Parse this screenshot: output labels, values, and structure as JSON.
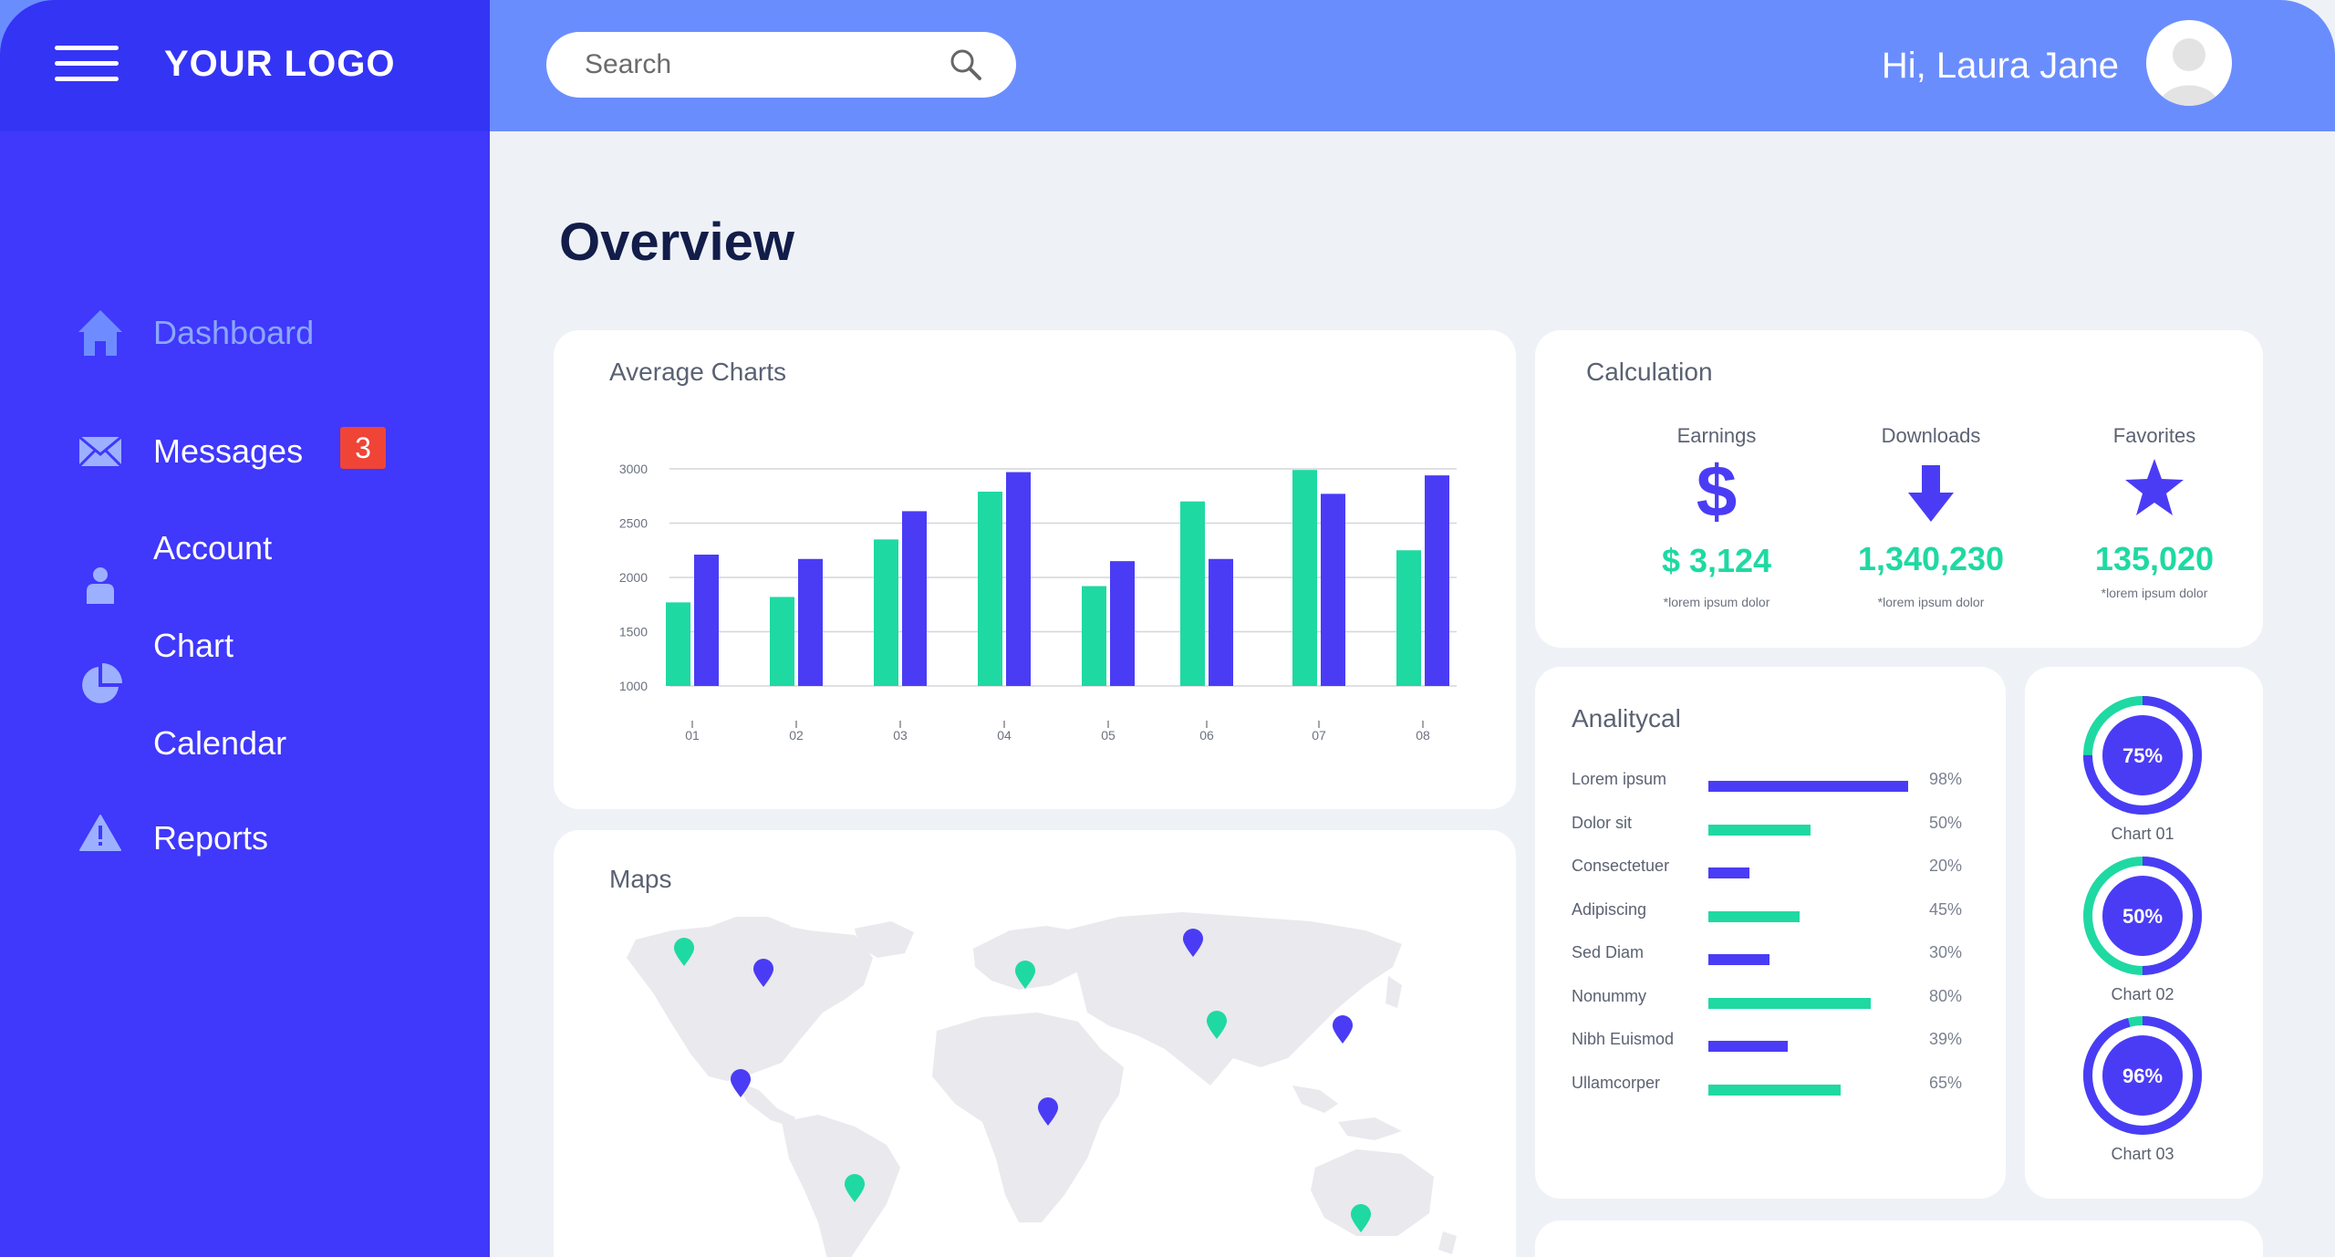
{
  "header": {
    "logo": "YOUR LOGO",
    "search_placeholder": "Search",
    "greeting": "Hi, Laura Jane"
  },
  "sidebar": {
    "items": [
      {
        "label": "Dashboard",
        "icon": "home-icon",
        "active": true
      },
      {
        "label": "Messages",
        "icon": "envelope-icon",
        "badge": "3"
      },
      {
        "label": "Account",
        "icon": "user-icon"
      },
      {
        "label": "Chart",
        "icon": "pie-chart-icon"
      },
      {
        "label": "Calendar",
        "icon": "calendar-icon"
      },
      {
        "label": "Reports",
        "icon": "warning-icon"
      }
    ]
  },
  "main": {
    "title": "Overview",
    "average_charts": {
      "title": "Average Charts"
    },
    "maps": {
      "title": "Maps"
    },
    "calculation": {
      "title": "Calculation",
      "items": [
        {
          "label": "Earnings",
          "icon": "dollar-icon",
          "value": "$ 3,124",
          "note": "*lorem ipsum dolor"
        },
        {
          "label": "Downloads",
          "icon": "arrow-down-icon",
          "value": "1,340,230",
          "note": "*lorem ipsum dolor"
        },
        {
          "label": "Favorites",
          "icon": "star-icon",
          "value": "135,020",
          "note": "*lorem ipsum dolor"
        }
      ]
    },
    "analytical": {
      "title": "Analitycal",
      "rows": [
        {
          "label": "Lorem ipsum",
          "pct": "98%",
          "value": 0.98,
          "color": "#4a3cf5"
        },
        {
          "label": "Dolor sit",
          "pct": "50%",
          "value": 0.5,
          "color": "#1fd9a2"
        },
        {
          "label": "Consectetuer",
          "pct": "20%",
          "value": 0.2,
          "color": "#4a3cf5"
        },
        {
          "label": "Adipiscing",
          "pct": "45%",
          "value": 0.45,
          "color": "#1fd9a2"
        },
        {
          "label": "Sed Diam",
          "pct": "30%",
          "value": 0.3,
          "color": "#4a3cf5"
        },
        {
          "label": "Nonummy",
          "pct": "80%",
          "value": 0.8,
          "color": "#1fd9a2"
        },
        {
          "label": "Nibh Euismod",
          "pct": "39%",
          "value": 0.39,
          "color": "#4a3cf5"
        },
        {
          "label": "Ullamcorper",
          "pct": "65%",
          "value": 0.65,
          "color": "#1fd9a2"
        }
      ]
    },
    "donuts": [
      {
        "label": "Chart 01",
        "value_text": "75%",
        "value": 0.75
      },
      {
        "label": "Chart 02",
        "value_text": "50%",
        "value": 0.5
      },
      {
        "label": "Chart 03",
        "value_text": "96%",
        "value": 0.96
      }
    ]
  },
  "colors": {
    "primary": "#4038fb",
    "accent": "#1fd9a2",
    "topbar": "#6a8dfe",
    "badge": "#f04436"
  },
  "chart_data": {
    "type": "bar",
    "title": "Average Charts",
    "categories": [
      "01",
      "02",
      "03",
      "04",
      "05",
      "06",
      "07",
      "08"
    ],
    "series": [
      {
        "values": [
          1770,
          1820,
          2350,
          2790,
          1920,
          2700,
          2990,
          2250
        ],
        "color": "#1fd9a2"
      },
      {
        "values": [
          2210,
          2170,
          2610,
          2970,
          2150,
          2170,
          2770,
          2940
        ],
        "color": "#4a3cf5"
      }
    ],
    "yticks": [
      1000,
      1500,
      2000,
      2500,
      3000
    ],
    "ylim": [
      1000,
      3000
    ],
    "grid": true
  }
}
